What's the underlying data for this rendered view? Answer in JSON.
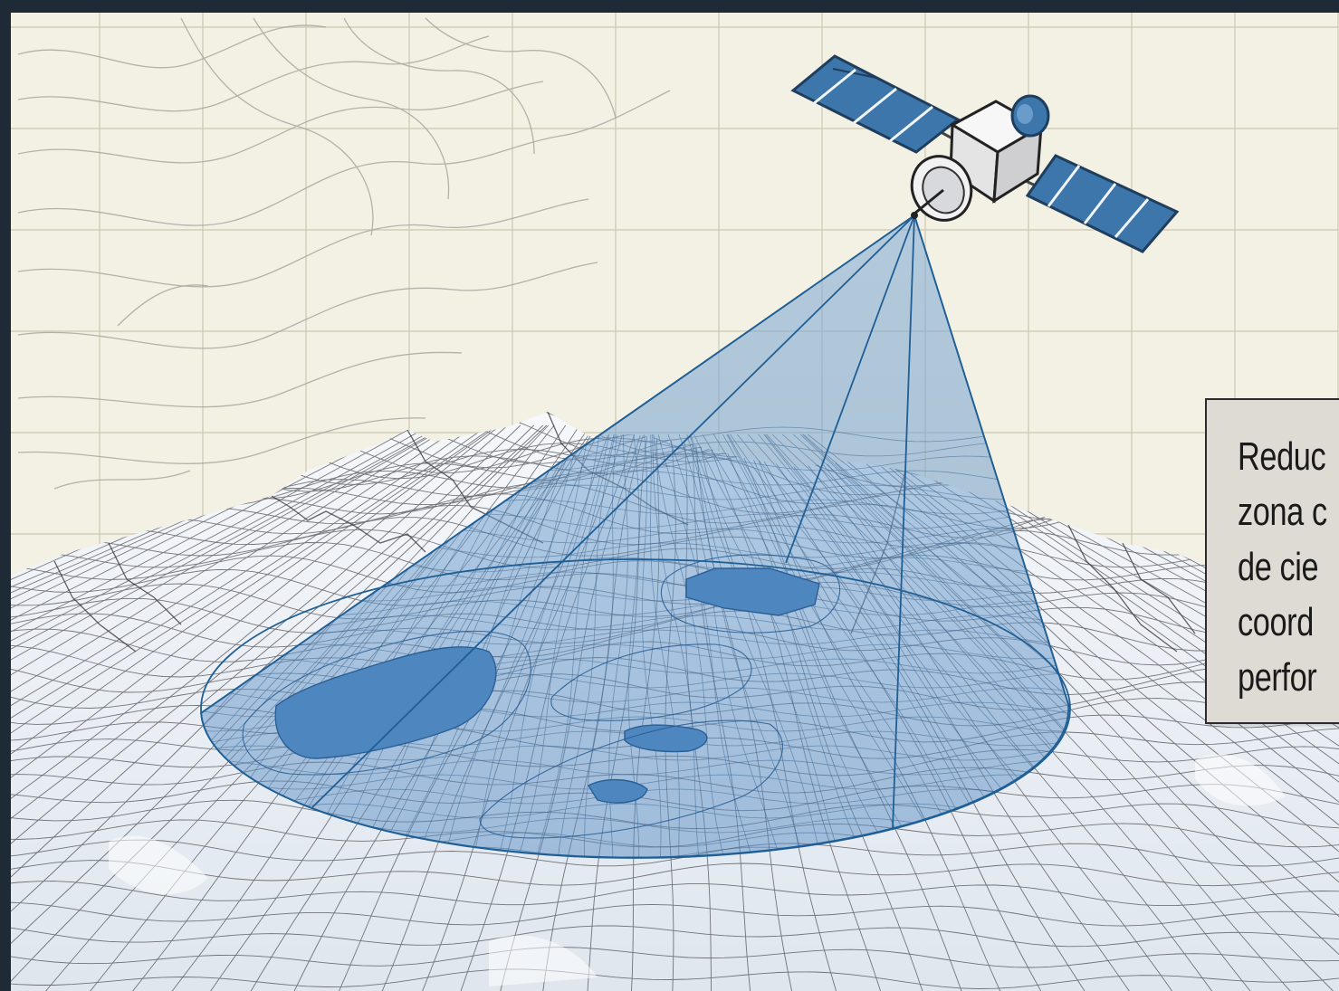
{
  "callout": {
    "lines": [
      "Reduc",
      "zona c",
      "de cie",
      "coord",
      "perfor"
    ]
  },
  "colors": {
    "paper": "#f3f0e4",
    "grid": "#d2cdb8",
    "contour": "#a9a79f",
    "beam_fill": "#6b9bcc",
    "beam_stroke": "#1f5f95",
    "lake": "#4e86bf",
    "solar_panel": "#3d76aa",
    "mesh": "#4c4c50",
    "snow": "#e9eef4",
    "frame": "#1e2a36"
  },
  "icons": {
    "satellite": "satellite-icon"
  }
}
